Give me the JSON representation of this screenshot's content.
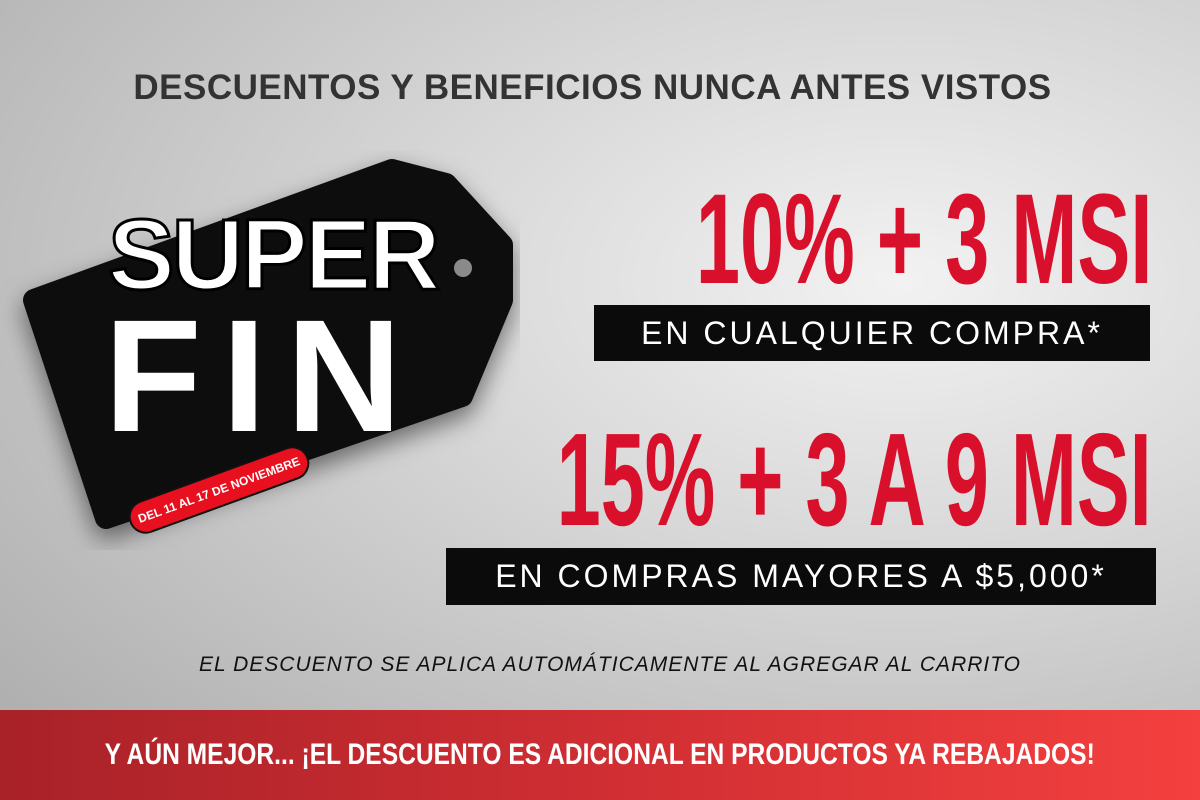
{
  "headline": "DESCUENTOS Y BENEFICIOS NUNCA ANTES VISTOS",
  "tag": {
    "line1": "SUPER",
    "line2": "FIN",
    "dates": "DEL 11 AL 17 DE NOVIEMBRE"
  },
  "offer1": {
    "title": "10% + 3 MSI",
    "subtitle": "EN CUALQUIER COMPRA*"
  },
  "offer2": {
    "title": "15% + 3 A 9 MSI",
    "subtitle": "EN COMPRAS MAYORES A $5,000*"
  },
  "note": "EL DESCUENTO SE APLICA AUTOMÁTICAMENTE AL AGREGAR AL CARRITO",
  "banner": "Y AÚN MEJOR... ¡EL DESCUENTO ES ADICIONAL EN PRODUCTOS YA REBAJADOS!",
  "colors": {
    "accent_red": "#d9102b",
    "band_red": "#cf2e33",
    "tag_black": "#0b0b0b"
  }
}
